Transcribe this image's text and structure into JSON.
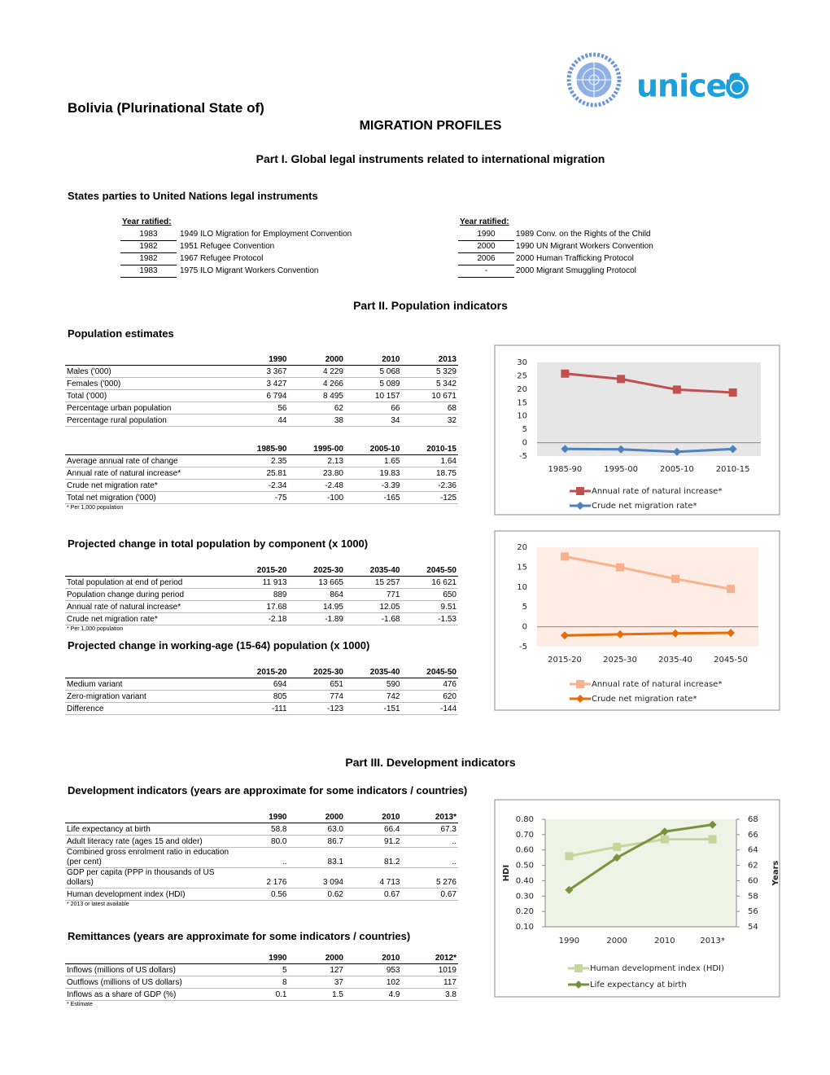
{
  "header": {
    "country": "Bolivia (Plurinational State of)",
    "title": "MIGRATION PROFILES",
    "logo_text": "unicef"
  },
  "part1": {
    "title": "Part I. Global legal instruments related to international migration",
    "subtitle": "States parties to United Nations legal instruments",
    "left": {
      "heading": "Year ratified:",
      "rows": [
        [
          "1983",
          "1949 ILO Migration for Employment Convention"
        ],
        [
          "1982",
          "1951 Refugee Convention"
        ],
        [
          "1982",
          "1967 Refugee Protocol"
        ],
        [
          "1983",
          "1975 ILO Migrant Workers Convention"
        ]
      ]
    },
    "right": {
      "heading": "Year ratified:",
      "rows": [
        [
          "1990",
          "1989 Conv. on the Rights of the Child"
        ],
        [
          "2000",
          "1990 UN Migrant Workers Convention"
        ],
        [
          "2006",
          "2000 Human Trafficking Protocol"
        ],
        [
          "-",
          "2000 Migrant Smuggling Protocol"
        ]
      ]
    }
  },
  "part2": {
    "title": "Part II. Population indicators",
    "estimates_title": "Population estimates",
    "estimates": {
      "columns": [
        "1990",
        "2000",
        "2010",
        "2013"
      ],
      "rows": [
        {
          "label": "Males ('000)",
          "values": [
            "3 367",
            "4 229",
            "5 068",
            "5 329"
          ]
        },
        {
          "label": "Females ('000)",
          "values": [
            "3 427",
            "4 266",
            "5 089",
            "5 342"
          ]
        },
        {
          "label": "Total ('000)",
          "values": [
            "6 794",
            "8 495",
            "10 157",
            "10 671"
          ]
        },
        {
          "label": "Percentage urban population",
          "values": [
            "56",
            "62",
            "66",
            "68"
          ]
        },
        {
          "label": "Percentage rural population",
          "values": [
            "44",
            "38",
            "34",
            "32"
          ]
        }
      ]
    },
    "rates": {
      "columns": [
        "1985-90",
        "1995-00",
        "2005-10",
        "2010-15"
      ],
      "rows": [
        {
          "label": "Average annual rate of change",
          "values": [
            "2.35",
            "2.13",
            "1.65",
            "1.64"
          ]
        },
        {
          "label": "Annual rate of natural increase*",
          "values": [
            "25.81",
            "23.80",
            "19.83",
            "18.75"
          ]
        },
        {
          "label": "Crude net migration rate*",
          "values": [
            "-2.34",
            "-2.48",
            "-3.39",
            "-2.36"
          ]
        },
        {
          "label": "Total net migration ('000)",
          "values": [
            "-75",
            "-100",
            "-165",
            "-125"
          ]
        }
      ],
      "note": "* Per 1,000 population"
    },
    "projected_title": "Projected change in total population by component (x 1000)",
    "projected": {
      "columns": [
        "2015-20",
        "2025-30",
        "2035-40",
        "2045-50"
      ],
      "rows": [
        {
          "label": "Total population at end of period",
          "values": [
            "11 913",
            "13 665",
            "15 257",
            "16 621"
          ]
        },
        {
          "label": "Population change during period",
          "values": [
            "889",
            "864",
            "771",
            "650"
          ]
        },
        {
          "label": "Annual rate of natural increase*",
          "values": [
            "17.68",
            "14.95",
            "12.05",
            "9.51"
          ]
        },
        {
          "label": "Crude net migration rate*",
          "values": [
            "-2.18",
            "-1.89",
            "-1.68",
            "-1.53"
          ]
        }
      ],
      "note": "* Per 1,000 population"
    },
    "working_title": "Projected change in working-age (15-64) population (x 1000)",
    "working": {
      "columns": [
        "2015-20",
        "2025-30",
        "2035-40",
        "2045-50"
      ],
      "rows": [
        {
          "label": "Medium variant",
          "values": [
            "694",
            "651",
            "590",
            "476"
          ]
        },
        {
          "label": "Zero-migration variant",
          "values": [
            "805",
            "774",
            "742",
            "620"
          ]
        },
        {
          "label": "Difference",
          "values": [
            "-111",
            "-123",
            "-151",
            "-144"
          ]
        }
      ]
    }
  },
  "part3": {
    "title": "Part III. Development indicators",
    "development_title": "Development indicators (years are approximate for some indicators / countries)",
    "development": {
      "columns": [
        "1990",
        "2000",
        "2010",
        "2013*"
      ],
      "rows": [
        {
          "label": "Life expectancy at birth",
          "values": [
            "58.8",
            "63.0",
            "66.4",
            "67.3"
          ]
        },
        {
          "label": "Adult literacy rate (ages 15 and older)",
          "values": [
            "80.0",
            "86.7",
            "91.2",
            ".."
          ]
        },
        {
          "label": "Combined gross enrolment ratio in education (per cent)",
          "values": [
            "..",
            "83.1",
            "81.2",
            ".."
          ]
        },
        {
          "label": "GDP per capita (PPP in thousands of US dollars)",
          "values": [
            "2 176",
            "3 094",
            "4 713",
            "5 276"
          ]
        },
        {
          "label": "Human development index (HDI)",
          "values": [
            "0.56",
            "0.62",
            "0.67",
            "0.67"
          ]
        }
      ],
      "note": "* 2013 or latest available"
    },
    "remittances_title": "Remittances (years are approximate for some indicators / countries)",
    "remittances": {
      "columns": [
        "1990",
        "2000",
        "2010",
        "2012*"
      ],
      "rows": [
        {
          "label": "Inflows (millions of US dollars)",
          "values": [
            "5",
            "127",
            "953",
            "1019"
          ]
        },
        {
          "label": "Outflows (millions of US dollars)",
          "values": [
            "8",
            "37",
            "102",
            "117"
          ]
        },
        {
          "label": "Inflows as a share of GDP (%)",
          "values": [
            "0.1",
            "1.5",
            "4.9",
            "3.8"
          ]
        }
      ],
      "note": "* Estimate"
    }
  },
  "chart_data": [
    {
      "type": "line",
      "categories": [
        "1985-90",
        "1995-00",
        "2005-10",
        "2010-15"
      ],
      "ylim": [
        -5,
        30
      ],
      "yticks": [
        30,
        25,
        20,
        15,
        10,
        5,
        0,
        -5
      ],
      "background": "#e6e6e6",
      "series": [
        {
          "name": "Annual rate of natural increase*",
          "color": "#c0504d",
          "marker": "square",
          "values": [
            25.81,
            23.8,
            19.83,
            18.75
          ]
        },
        {
          "name": "Crude net migration rate*",
          "color": "#4f81bd",
          "marker": "diamond",
          "values": [
            -2.34,
            -2.48,
            -3.39,
            -2.36
          ]
        }
      ]
    },
    {
      "type": "line",
      "categories": [
        "2015-20",
        "2025-30",
        "2035-40",
        "2045-50"
      ],
      "ylim": [
        -5,
        20
      ],
      "yticks": [
        20,
        15,
        10,
        5,
        0,
        -5
      ],
      "background": "#fdede4",
      "series": [
        {
          "name": "Annual rate of natural increase*",
          "color": "#fab08c",
          "marker": "square",
          "values": [
            17.68,
            14.95,
            12.05,
            9.51
          ]
        },
        {
          "name": "Crude net migration rate*",
          "color": "#e46c0a",
          "marker": "diamond",
          "values": [
            -2.18,
            -1.89,
            -1.68,
            -1.53
          ]
        }
      ]
    },
    {
      "type": "line",
      "categories": [
        "1990",
        "2000",
        "2010",
        "2013*"
      ],
      "ylabel": "HDI",
      "y2label": "Years",
      "ylim": [
        0.1,
        0.8
      ],
      "yticks": [
        {
          "value": 0.8,
          "label": "0.80"
        },
        {
          "value": 0.7,
          "label": "0.70"
        },
        {
          "value": 0.6,
          "label": "0.60"
        },
        {
          "value": 0.5,
          "label": "0.50"
        },
        {
          "value": 0.4,
          "label": "0.40"
        },
        {
          "value": 0.3,
          "label": "0.30"
        },
        {
          "value": 0.2,
          "label": "0.20"
        },
        {
          "value": 0.1,
          "label": "0.10"
        }
      ],
      "y2lim": [
        54,
        68
      ],
      "y2ticks": [
        68,
        66,
        64,
        62,
        60,
        58,
        56,
        54
      ],
      "background": "#eef3e6",
      "series": [
        {
          "name": "Human development index (HDI)",
          "color": "#c3d69b",
          "marker": "square",
          "values": [
            0.56,
            0.62,
            0.67,
            0.67
          ]
        },
        {
          "name": "Life expectancy at birth",
          "color": "#77933c",
          "marker": "diamond",
          "axis": "y2",
          "values": [
            58.8,
            63.0,
            66.4,
            67.3
          ]
        }
      ]
    }
  ]
}
